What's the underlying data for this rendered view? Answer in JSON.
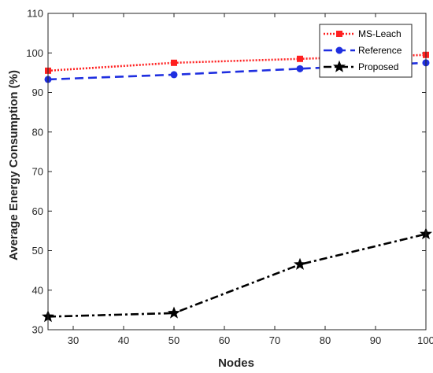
{
  "chart_data": {
    "type": "line",
    "title": "",
    "xlabel": "Nodes",
    "ylabel": "Average Energy Consumption (%)",
    "x": [
      25,
      50,
      75,
      100
    ],
    "xlim": [
      25,
      100
    ],
    "ylim": [
      30,
      110
    ],
    "xticks": [
      30,
      40,
      50,
      60,
      70,
      80,
      90,
      100
    ],
    "yticks": [
      30,
      40,
      50,
      60,
      70,
      80,
      90,
      100,
      110
    ],
    "grid": false,
    "legend_position": "top-right",
    "series": [
      {
        "name": "MS-Leach",
        "values": [
          95.5,
          97.5,
          98.5,
          99.5
        ],
        "color": "#ff2020",
        "line_style": "dotted",
        "marker": "square"
      },
      {
        "name": "Reference",
        "values": [
          93.3,
          94.5,
          96.0,
          97.5
        ],
        "color": "#1f2fe0",
        "line_style": "dashed",
        "marker": "circle"
      },
      {
        "name": "Proposed",
        "values": [
          33.3,
          34.2,
          46.5,
          54.2
        ],
        "color": "#000000",
        "line_style": "dashdot",
        "marker": "star"
      }
    ]
  }
}
